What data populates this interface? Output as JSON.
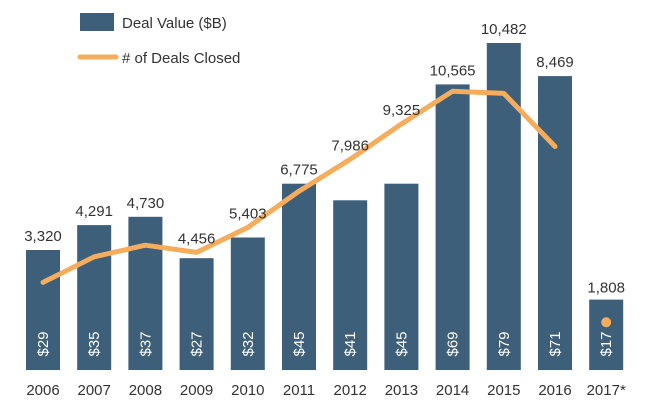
{
  "chart_data": {
    "type": "bar",
    "title": "",
    "xlabel": "",
    "ylabel": "",
    "categories": [
      "2006",
      "2007",
      "2008",
      "2009",
      "2010",
      "2011",
      "2012",
      "2013",
      "2014",
      "2015",
      "2016",
      "2017*"
    ],
    "series": [
      {
        "name": "Deal Value ($B)",
        "kind": "bar",
        "color": "#3d5f7a",
        "values": [
          29,
          35,
          37,
          27,
          32,
          45,
          41,
          45,
          69,
          79,
          71,
          17
        ],
        "value_labels": [
          "$29",
          "$35",
          "$37",
          "$27",
          "$32",
          "$45",
          "$41",
          "$45",
          "$69",
          "$79",
          "$71",
          "$17"
        ],
        "ylim": [
          0,
          86
        ]
      },
      {
        "name": "# of Deals Closed",
        "kind": "line",
        "color": "#f5ad5b",
        "values": [
          3320,
          4291,
          4730,
          4456,
          5403,
          6775,
          7986,
          9325,
          10565,
          10482,
          8469,
          1808
        ],
        "value_labels": [
          "3,320",
          "4,291",
          "4,730",
          "4,456",
          "5,403",
          "6,775",
          "7,986",
          "9,325",
          "10,565",
          "10,482",
          "8,469",
          "1,808"
        ],
        "line_through_index": 10,
        "marker_only_index": 11,
        "ylim": [
          0,
          13000
        ]
      }
    ],
    "legend": {
      "position": "top-left",
      "entries": [
        "Deal Value ($B)",
        "# of Deals Closed"
      ]
    },
    "grid": false
  }
}
